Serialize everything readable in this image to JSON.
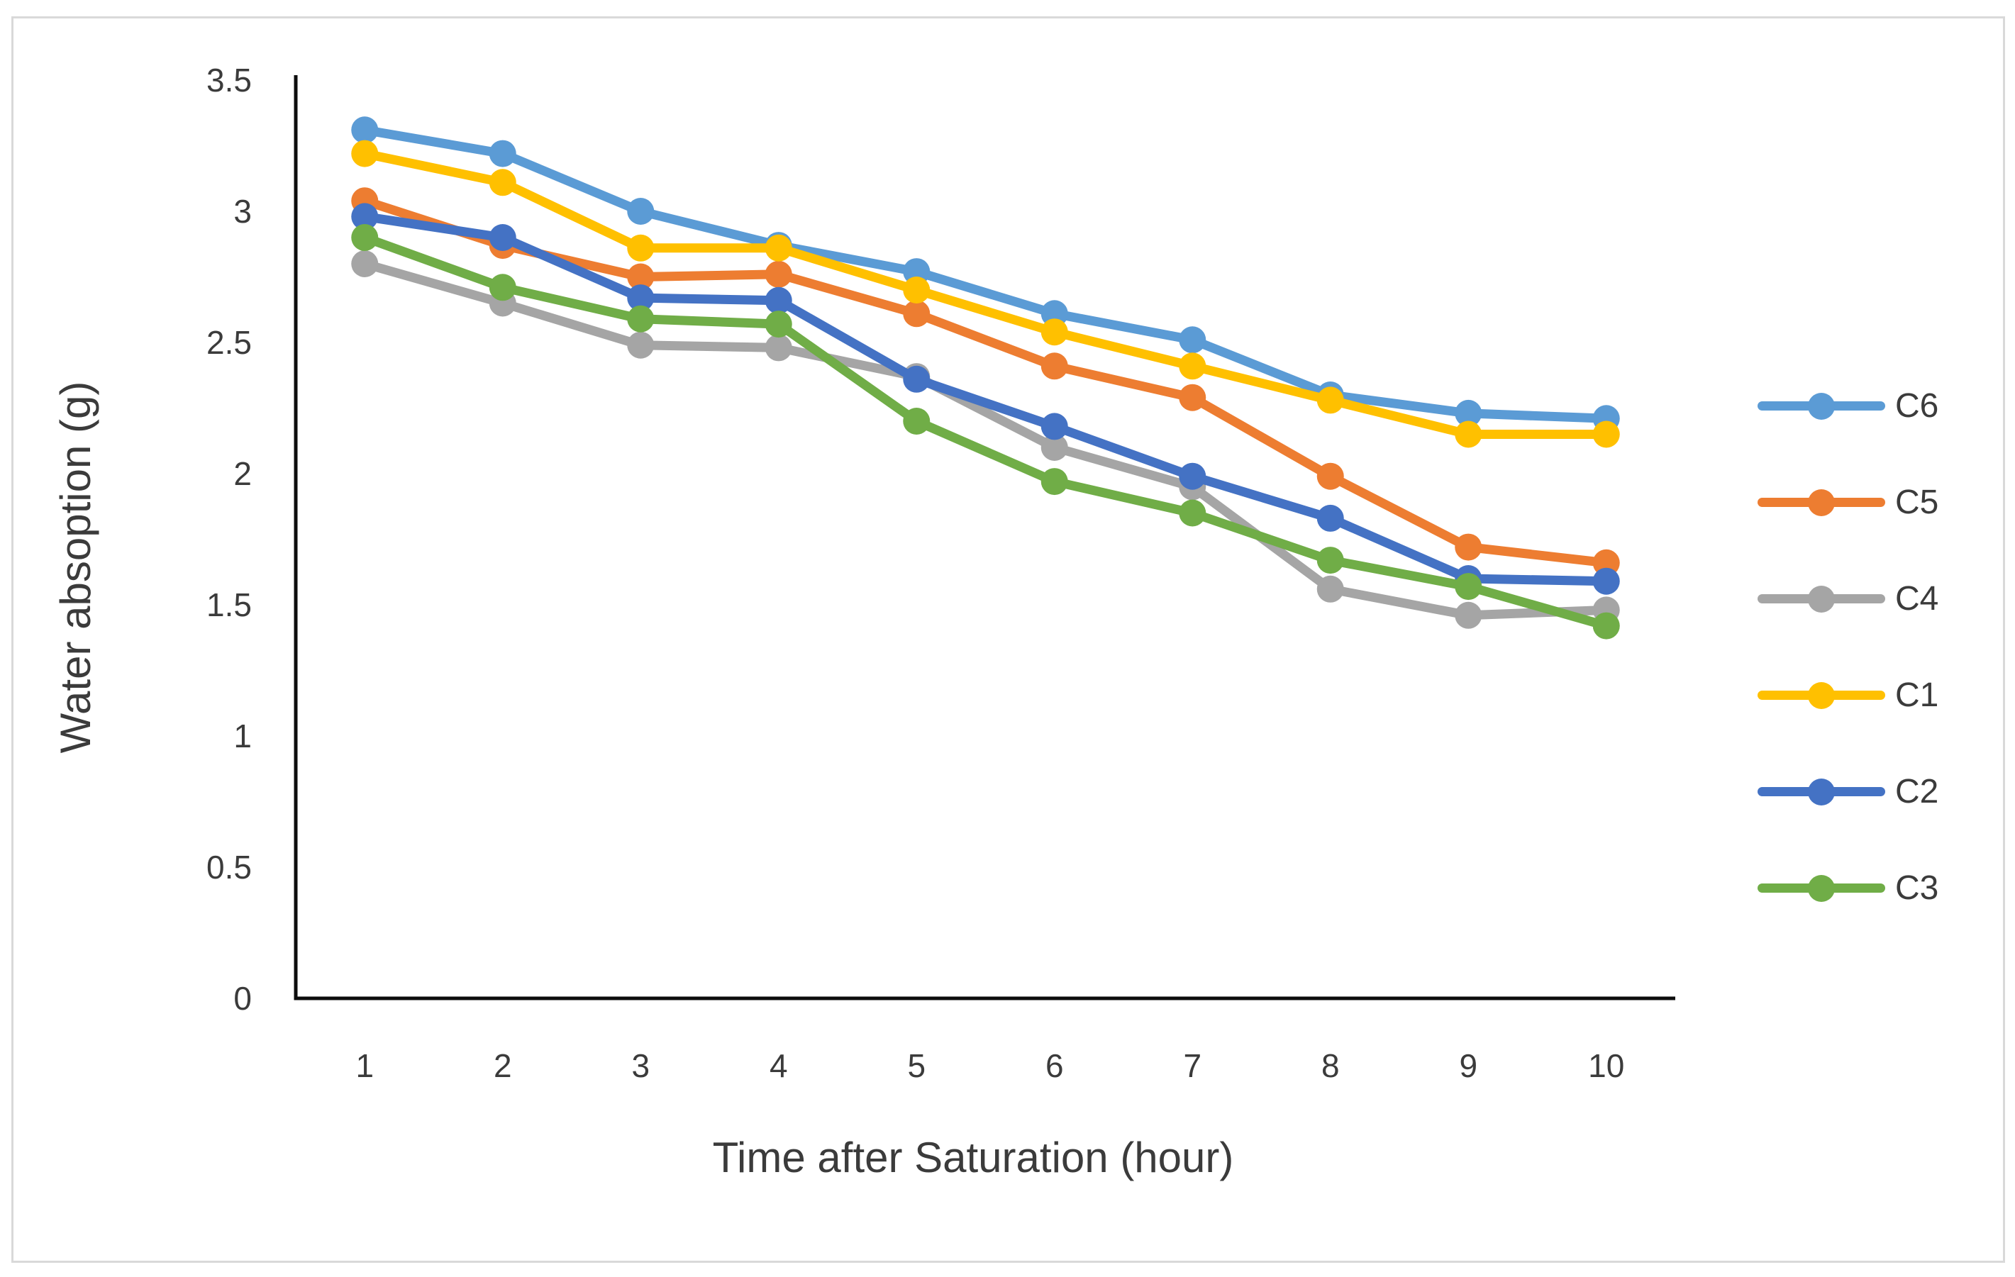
{
  "chart_data": {
    "type": "line",
    "x": [
      1,
      2,
      3,
      4,
      5,
      6,
      7,
      8,
      9,
      10
    ],
    "xtick_labels": [
      "1",
      "2",
      "3",
      "4",
      "5",
      "6",
      "7",
      "8",
      "9",
      "10"
    ],
    "ytick_labels": [
      "3.5",
      "3",
      "2.5",
      "2",
      "1.5",
      "1",
      "0.5",
      "0"
    ],
    "yticks": [
      3.5,
      3,
      2.5,
      2,
      1.5,
      1,
      0.5,
      0
    ],
    "xlabel": "Time after Saturation (hour)",
    "ylabel": "Water absoption (g)",
    "ylim": [
      0,
      3.5
    ],
    "xlim_categories": 10,
    "grid": false,
    "legend_position": "right",
    "marker": "circle",
    "series": [
      {
        "name": "C6",
        "color": "#5B9BD5",
        "values": [
          3.31,
          3.22,
          3.0,
          2.87,
          2.77,
          2.61,
          2.51,
          2.3,
          2.23,
          2.21
        ]
      },
      {
        "name": "C5",
        "color": "#ED7D31",
        "values": [
          3.04,
          2.87,
          2.75,
          2.76,
          2.61,
          2.41,
          2.29,
          1.99,
          1.72,
          1.66
        ]
      },
      {
        "name": "C4",
        "color": "#A5A5A5",
        "values": [
          2.8,
          2.65,
          2.49,
          2.48,
          2.37,
          2.1,
          1.95,
          1.56,
          1.46,
          1.48
        ]
      },
      {
        "name": "C1",
        "color": "#FFC000",
        "values": [
          3.22,
          3.11,
          2.86,
          2.86,
          2.7,
          2.54,
          2.41,
          2.28,
          2.15,
          2.15
        ]
      },
      {
        "name": "C2",
        "color": "#4472C4",
        "values": [
          2.98,
          2.9,
          2.67,
          2.66,
          2.36,
          2.18,
          1.99,
          1.83,
          1.6,
          1.59
        ]
      },
      {
        "name": "C3",
        "color": "#70AD47",
        "values": [
          2.9,
          2.71,
          2.59,
          2.57,
          2.2,
          1.97,
          1.85,
          1.67,
          1.57,
          1.42
        ]
      }
    ],
    "legend": [
      "C6",
      "C5",
      "C4",
      "C1",
      "C2",
      "C3"
    ]
  },
  "style": {
    "axis_color": "#0d0d0d",
    "text_color": "#3b3b3b",
    "frame_border_color": "#d9d9d9",
    "background": "#ffffff"
  }
}
